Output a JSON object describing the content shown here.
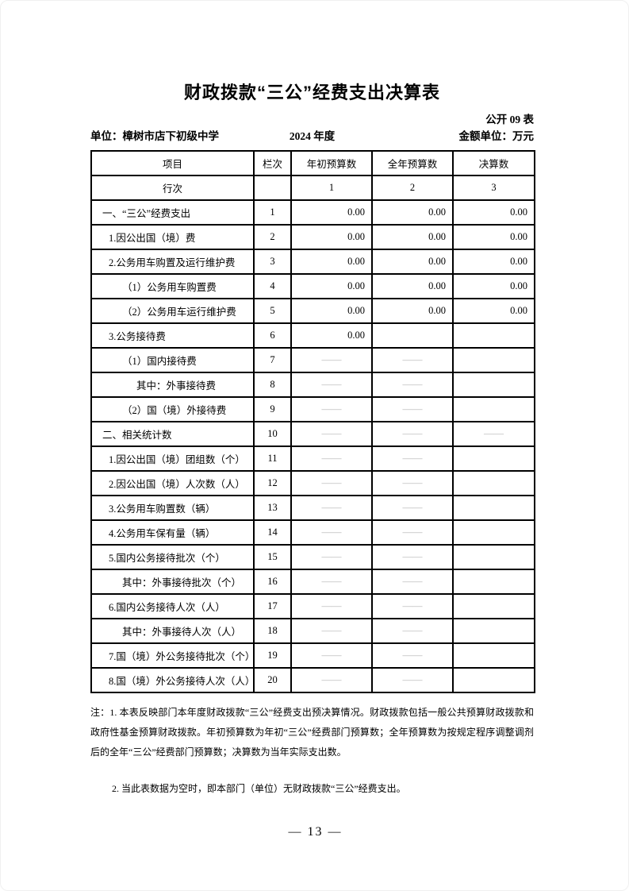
{
  "page": {
    "title": "财政拨款“三公”经费支出决算表",
    "form_no": "公开 09 表",
    "unit_label": "单位：樟树市店下初级中学",
    "year": "2024 年度",
    "amount_unit": "金额单位：万元",
    "page_number": "— 13 —"
  },
  "table": {
    "headers": [
      "项目",
      "栏次",
      "年初预算数",
      "全年预算数",
      "决算数"
    ],
    "subheader": {
      "label": "行次",
      "cols": [
        "",
        "1",
        "2",
        "3"
      ]
    },
    "dash": "——",
    "rows": [
      {
        "label": "一、“三公”经费支出",
        "indent": 0,
        "line": "1",
        "v1": "0.00",
        "v2": "0.00",
        "v3": "0.00"
      },
      {
        "label": "1.因公出国（境）费",
        "indent": 1,
        "line": "2",
        "v1": "0.00",
        "v2": "0.00",
        "v3": "0.00"
      },
      {
        "label": "2.公务用车购置及运行维护费",
        "indent": 1,
        "line": "3",
        "v1": "0.00",
        "v2": "0.00",
        "v3": "0.00"
      },
      {
        "label": "（1）公务用车购置费",
        "indent": 2,
        "line": "4",
        "v1": "0.00",
        "v2": "0.00",
        "v3": "0.00"
      },
      {
        "label": "（2）公务用车运行维护费",
        "indent": 2,
        "line": "5",
        "v1": "0.00",
        "v2": "0.00",
        "v3": "0.00"
      },
      {
        "label": "3.公务接待费",
        "indent": 1,
        "line": "6",
        "v1": "0.00",
        "v2": "",
        "v3": ""
      },
      {
        "label": "（1）国内接待费",
        "indent": 2,
        "line": "7",
        "v1": "——",
        "v2": "——",
        "v3": ""
      },
      {
        "label": "其中：外事接待费",
        "indent": 3,
        "line": "8",
        "v1": "——",
        "v2": "——",
        "v3": ""
      },
      {
        "label": "（2）国（境）外接待费",
        "indent": 2,
        "line": "9",
        "v1": "——",
        "v2": "——",
        "v3": ""
      },
      {
        "label": "二、相关统计数",
        "indent": 0,
        "line": "10",
        "v1": "——",
        "v2": "——",
        "v3": "——"
      },
      {
        "label": "1.因公出国（境）团组数（个）",
        "indent": 1,
        "line": "11",
        "v1": "——",
        "v2": "——",
        "v3": ""
      },
      {
        "label": "2.因公出国（境）人次数（人）",
        "indent": 1,
        "line": "12",
        "v1": "——",
        "v2": "——",
        "v3": ""
      },
      {
        "label": "3.公务用车购置数（辆）",
        "indent": 1,
        "line": "13",
        "v1": "——",
        "v2": "——",
        "v3": ""
      },
      {
        "label": "4.公务用车保有量（辆）",
        "indent": 1,
        "line": "14",
        "v1": "——",
        "v2": "——",
        "v3": ""
      },
      {
        "label": "5.国内公务接待批次（个）",
        "indent": 1,
        "line": "15",
        "v1": "——",
        "v2": "——",
        "v3": ""
      },
      {
        "label": "其中：外事接待批次（个）",
        "indent": 2,
        "line": "16",
        "v1": "——",
        "v2": "——",
        "v3": ""
      },
      {
        "label": "6.国内公务接待人次（人）",
        "indent": 1,
        "line": "17",
        "v1": "——",
        "v2": "——",
        "v3": ""
      },
      {
        "label": "其中：外事接待人次（人）",
        "indent": 2,
        "line": "18",
        "v1": "——",
        "v2": "——",
        "v3": ""
      },
      {
        "label": "7.国（境）外公务接待批次（个）",
        "indent": 1,
        "line": "19",
        "v1": "——",
        "v2": "——",
        "v3": ""
      },
      {
        "label": "8.国（境）外公务接待人次（人）",
        "indent": 1,
        "line": "20",
        "v1": "——",
        "v2": "——",
        "v3": ""
      }
    ]
  },
  "notes": {
    "note1": "注：1. 本表反映部门本年度财政拨款“三公”经费支出预决算情况。财政拨款包括一般公共预算财政拨款和政府性基金预算财政拨款。年初预算数为年初“三公”经费部门预算数；全年预算数为按规定程序调整调剂后的全年“三公”经费部门预算数；决算数为当年实际支出数。",
    "note2": "2. 当此表数据为空时，即本部门（单位）无财政拨款“三公”经费支出。"
  }
}
